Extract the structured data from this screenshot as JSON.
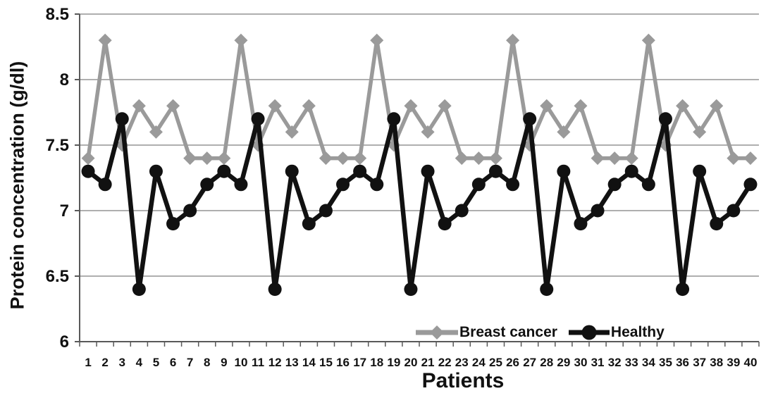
{
  "chart_data": {
    "type": "line",
    "title": "",
    "xlabel": "Patients",
    "ylabel": "Protein concentration (g/dl)",
    "x": [
      1,
      2,
      3,
      4,
      5,
      6,
      7,
      8,
      9,
      10,
      11,
      12,
      13,
      14,
      15,
      16,
      17,
      18,
      19,
      20,
      21,
      22,
      23,
      24,
      25,
      26,
      27,
      28,
      29,
      30,
      31,
      32,
      33,
      34,
      35,
      36,
      37,
      38,
      39,
      40
    ],
    "series": [
      {
        "name": "Breast cancer",
        "marker": "diamond",
        "color": "#9a9a9a",
        "line_width": 5.5,
        "values": [
          7.4,
          8.3,
          7.5,
          7.8,
          7.6,
          7.8,
          7.4,
          7.4,
          7.4,
          8.3,
          7.5,
          7.8,
          7.6,
          7.8,
          7.4,
          7.4,
          7.4,
          8.3,
          7.5,
          7.8,
          7.6,
          7.8,
          7.4,
          7.4,
          7.4,
          8.3,
          7.5,
          7.8,
          7.6,
          7.8,
          7.4,
          7.4,
          7.4,
          8.3,
          7.5,
          7.8,
          7.6,
          7.8,
          7.4,
          7.4
        ]
      },
      {
        "name": "Healthy",
        "marker": "circle",
        "color": "#111111",
        "line_width": 6.5,
        "values": [
          7.3,
          7.2,
          7.7,
          6.4,
          7.3,
          6.9,
          7.0,
          7.2,
          7.3,
          7.2,
          7.7,
          6.4,
          7.3,
          6.9,
          7.0,
          7.2,
          7.3,
          7.2,
          7.7,
          6.4,
          7.3,
          6.9,
          7.0,
          7.2,
          7.3,
          7.2,
          7.7,
          6.4,
          7.3,
          6.9,
          7.0,
          7.2,
          7.3,
          7.2,
          7.7,
          6.4,
          7.3,
          6.9,
          7.0,
          7.2
        ]
      }
    ],
    "ylim": [
      6,
      8.5
    ],
    "yticks": [
      8.5,
      8,
      7.5,
      7,
      6.5,
      6
    ],
    "ytick_labels": [
      "8.5",
      "8",
      "7.5",
      "7",
      "6.5",
      "6"
    ],
    "grid": true,
    "legend_position": "inside-bottom-right"
  },
  "style": {
    "grid_color": "#7f7f7f",
    "axis_color": "#595959",
    "text_color": "#111111",
    "background": "#ffffff"
  }
}
